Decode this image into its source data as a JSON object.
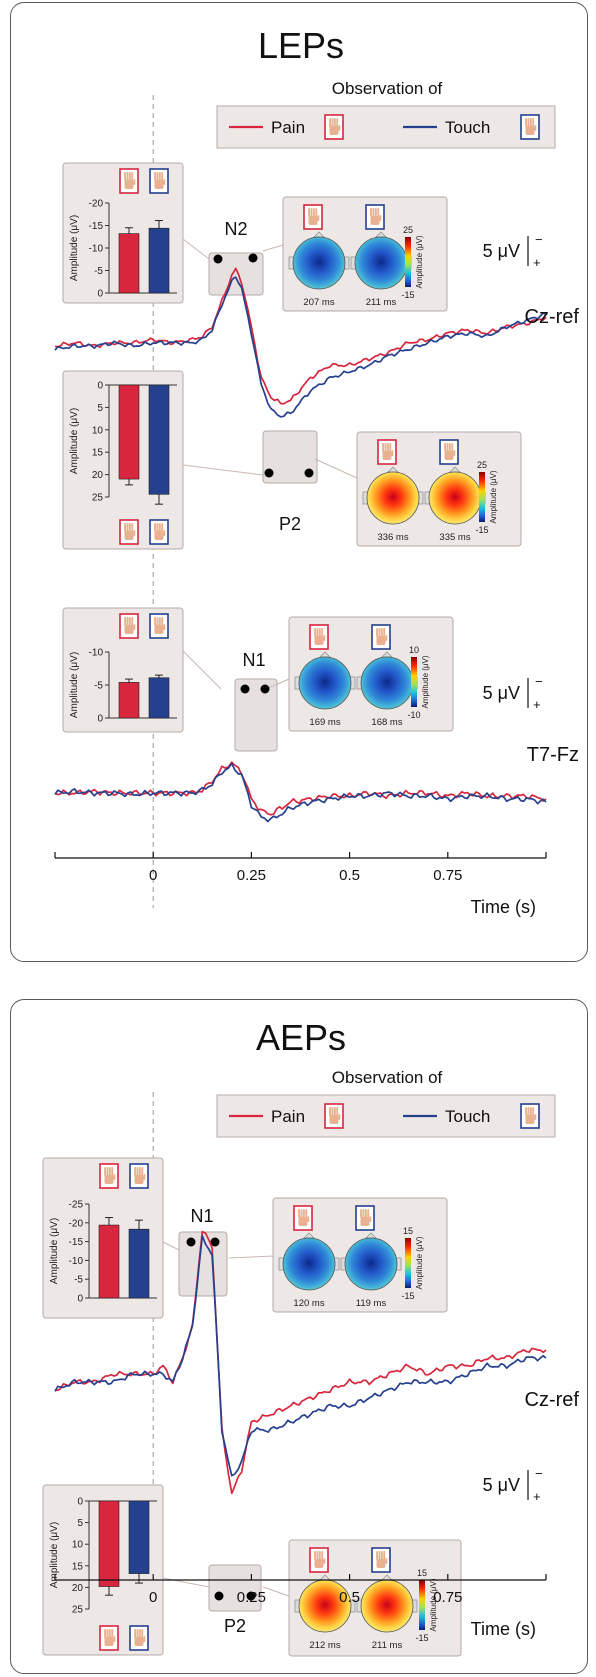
{
  "colors": {
    "pain": "#d7263d",
    "touch": "#24408e",
    "inset_bg": "#ede8e6",
    "inset_border": "#b4aaa6",
    "hand_skin": "#e9b18f"
  },
  "legend": {
    "title": "Observation of",
    "pain_label": "Pain",
    "touch_label": "Touch"
  },
  "time_axis_label": "Time (s)",
  "scale_bar": {
    "label": "5 μV",
    "minus": "−",
    "plus": "+"
  },
  "chart_data": [
    {
      "type": "line",
      "title": "LEPs",
      "panel": "LEPs",
      "channel": "Cz-ref",
      "x": [
        -0.25,
        -0.2,
        -0.15,
        -0.1,
        -0.05,
        0,
        0.05,
        0.1,
        0.125,
        0.15,
        0.175,
        0.2,
        0.21,
        0.225,
        0.25,
        0.275,
        0.3,
        0.325,
        0.35,
        0.4,
        0.45,
        0.5,
        0.55,
        0.6,
        0.65,
        0.7,
        0.75,
        0.8,
        0.85,
        0.9,
        0.95,
        1.0
      ],
      "series": [
        {
          "name": "Pain",
          "values": [
            0,
            -1,
            0,
            -1,
            -1,
            -2,
            -1,
            -2,
            -3,
            -6,
            -14,
            -22,
            -24,
            -20,
            -6,
            10,
            16,
            18,
            17,
            10,
            6,
            6,
            4,
            2,
            -1,
            -2,
            -4,
            -5,
            -4,
            -6,
            -7,
            -9
          ]
        },
        {
          "name": "Touch",
          "values": [
            1,
            0,
            0,
            -1,
            0,
            -1,
            -1,
            -1,
            -2,
            -5,
            -13,
            -20,
            -22,
            -18,
            -4,
            12,
            20,
            22,
            21,
            14,
            10,
            8,
            6,
            3,
            1,
            -1,
            -3,
            -4,
            -3,
            -6,
            -8,
            -10
          ]
        }
      ],
      "xlim": [
        -0.25,
        1.0
      ],
      "xticks": [
        "0",
        "0.25",
        "0.5",
        "0.75"
      ],
      "xlabel": "Time (s)",
      "components": [
        {
          "name": "N2",
          "bar_ylabel": "Amplitude (μV)",
          "bar_ticks": [
            "-20",
            "-15",
            "-10",
            "-5",
            "0"
          ],
          "ylim": [
            -20,
            0
          ],
          "values": {
            "Pain": -13.2,
            "Touch": -14.4
          },
          "errors": {
            "Pain": 1.3,
            "Touch": 1.7
          },
          "topo_latencies": [
            "207 ms",
            "211 ms"
          ],
          "topo_scale": [
            "25",
            "-15"
          ],
          "topo_scale_label": "Amplitude (μV)",
          "topo_polarity": "negative"
        },
        {
          "name": "P2",
          "bar_ylabel": "Amplitude (μV)",
          "bar_ticks": [
            "0",
            "5",
            "10",
            "15",
            "20",
            "25"
          ],
          "ylim": [
            0,
            25
          ],
          "values": {
            "Pain": 21.0,
            "Touch": 24.4
          },
          "errors": {
            "Pain": 1.3,
            "Touch": 2.2
          },
          "topo_latencies": [
            "336 ms",
            "335 ms"
          ],
          "topo_scale": [
            "25",
            "-15"
          ],
          "topo_scale_label": "Amplitude (μV)",
          "topo_polarity": "positive"
        }
      ]
    },
    {
      "type": "line",
      "panel": "LEPs",
      "channel": "T7-Fz",
      "x": [
        -0.25,
        -0.2,
        -0.15,
        -0.1,
        -0.05,
        0,
        0.05,
        0.1,
        0.125,
        0.15,
        0.175,
        0.2,
        0.225,
        0.25,
        0.275,
        0.3,
        0.35,
        0.4,
        0.45,
        0.5,
        0.55,
        0.6,
        0.65,
        0.7,
        0.75,
        0.8,
        0.85,
        0.9,
        0.95,
        1.0
      ],
      "series": [
        {
          "name": "Pain",
          "values": [
            0,
            0,
            -0.5,
            0,
            0,
            0,
            0,
            0,
            -1,
            -4,
            -8,
            -10,
            -7,
            2,
            6,
            7,
            3,
            2,
            1,
            1,
            0,
            1,
            0,
            0,
            1,
            0,
            1,
            1,
            1,
            2
          ]
        },
        {
          "name": "Touch",
          "values": [
            0,
            -0.5,
            0,
            0,
            0.5,
            0,
            0,
            0,
            -1,
            -3,
            -7,
            -9,
            -6,
            4,
            8,
            9,
            5,
            3,
            2,
            1,
            1,
            0,
            1,
            1,
            2,
            1,
            1,
            2,
            2,
            3
          ]
        }
      ],
      "xlim": [
        -0.25,
        1.0
      ],
      "components": [
        {
          "name": "N1",
          "bar_ylabel": "Amplitude (μV)",
          "bar_ticks": [
            "-10",
            "-5",
            "0"
          ],
          "ylim": [
            -10,
            0
          ],
          "values": {
            "Pain": -5.4,
            "Touch": -6.1
          },
          "errors": {
            "Pain": 0.5,
            "Touch": 0.4
          },
          "topo_latencies": [
            "169 ms",
            "168 ms"
          ],
          "topo_scale": [
            "10",
            "-10"
          ],
          "topo_scale_label": "Amplitude (μV)",
          "topo_polarity": "negative"
        }
      ]
    },
    {
      "type": "line",
      "title": "AEPs",
      "panel": "AEPs",
      "channel": "Cz-ref",
      "x": [
        -0.25,
        -0.2,
        -0.15,
        -0.1,
        -0.05,
        0,
        0.025,
        0.05,
        0.075,
        0.1,
        0.125,
        0.15,
        0.175,
        0.2,
        0.225,
        0.25,
        0.3,
        0.35,
        0.4,
        0.45,
        0.5,
        0.55,
        0.6,
        0.65,
        0.7,
        0.75,
        0.8,
        0.85,
        0.9,
        0.95,
        1.0
      ],
      "series": [
        {
          "name": "Pain",
          "values": [
            0,
            -1,
            -1,
            -2,
            -2,
            -2,
            -3,
            -1,
            -4,
            -8,
            -20,
            -18,
            5,
            13,
            10,
            4,
            3,
            2,
            1,
            0,
            -1,
            -1,
            -2,
            -3,
            -2,
            -3,
            -3,
            -4,
            -4,
            -5,
            -5
          ]
        },
        {
          "name": "Touch",
          "values": [
            0,
            -1,
            -1,
            -1,
            -2,
            -2,
            -2,
            -1,
            -4,
            -8,
            -19,
            -17,
            5,
            11,
            9,
            5,
            5,
            4,
            3,
            2,
            2,
            1,
            0,
            -1,
            -1,
            -1,
            -2,
            -3,
            -3,
            -4,
            -4
          ]
        }
      ],
      "xlim": [
        -0.25,
        1.0
      ],
      "xticks": [
        "0",
        "0.25",
        "0.5",
        "0.75"
      ],
      "xlabel": "Time (s)",
      "components": [
        {
          "name": "N1",
          "bar_ylabel": "Amplitude (μV)",
          "bar_ticks": [
            "-25",
            "-20",
            "-15",
            "-10",
            "-5",
            "0"
          ],
          "ylim": [
            -25,
            0
          ],
          "values": {
            "Pain": -19.4,
            "Touch": -18.3
          },
          "errors": {
            "Pain": 2.0,
            "Touch": 2.4
          },
          "topo_latencies": [
            "120 ms",
            "119 ms"
          ],
          "topo_scale": [
            "15",
            "-15"
          ],
          "topo_scale_label": "Amplitude (μV)",
          "topo_polarity": "negative"
        },
        {
          "name": "P2",
          "bar_ylabel": "Amplitude (μV)",
          "bar_ticks": [
            "0",
            "5",
            "10",
            "15",
            "20",
            "25"
          ],
          "ylim": [
            0,
            25
          ],
          "values": {
            "Pain": 19.8,
            "Touch": 16.8
          },
          "errors": {
            "Pain": 2.0,
            "Touch": 2.2
          },
          "topo_latencies": [
            "212 ms",
            "211 ms"
          ],
          "topo_scale": [
            "15",
            "-15"
          ],
          "topo_scale_label": "Amplitude (μV)",
          "topo_polarity": "positive"
        }
      ]
    }
  ]
}
